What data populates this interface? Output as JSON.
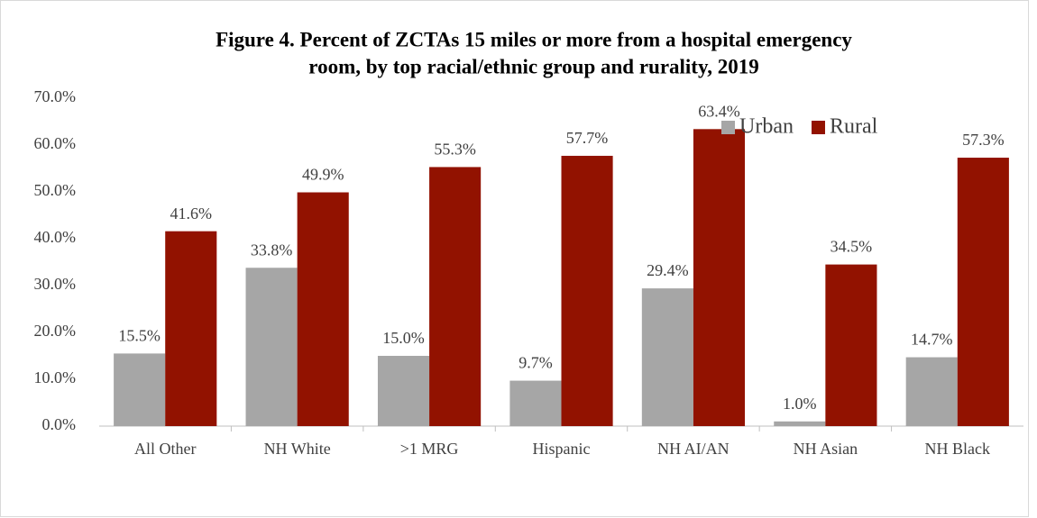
{
  "chart_data": {
    "type": "bar",
    "title": [
      "Figure 4. Percent of ZCTAs 15 miles or more from a hospital emergency",
      "room, by top racial/ethnic group and rurality, 2019"
    ],
    "categories": [
      "All Other",
      "NH White",
      ">1 MRG",
      "Hispanic",
      "NH AI/AN",
      "NH Asian",
      "NH Black"
    ],
    "series": [
      {
        "name": "Urban",
        "color": "#a6a6a6",
        "values": [
          15.5,
          33.8,
          15.0,
          9.7,
          29.4,
          1.0,
          14.7
        ],
        "value_labels": [
          "15.5%",
          "33.8%",
          "15.0%",
          "9.7%",
          "29.4%",
          "1.0%",
          "14.7%"
        ]
      },
      {
        "name": "Rural",
        "color": "#921200",
        "values": [
          41.6,
          49.9,
          55.3,
          57.7,
          63.4,
          34.5,
          57.3
        ],
        "value_labels": [
          "41.6%",
          "49.9%",
          "55.3%",
          "57.7%",
          "63.4%",
          "34.5%",
          "57.3%"
        ]
      }
    ],
    "ylim": [
      0,
      70
    ],
    "yticks": [
      {
        "value": 0,
        "label": "0.0%"
      },
      {
        "value": 10,
        "label": "10.0%"
      },
      {
        "value": 20,
        "label": "20.0%"
      },
      {
        "value": 30,
        "label": "30.0%"
      },
      {
        "value": 40,
        "label": "40.0%"
      },
      {
        "value": 50,
        "label": "50.0%"
      },
      {
        "value": 60,
        "label": "60.0%"
      },
      {
        "value": 70,
        "label": "70.0%"
      }
    ],
    "grid": false,
    "legend": "top-right"
  }
}
